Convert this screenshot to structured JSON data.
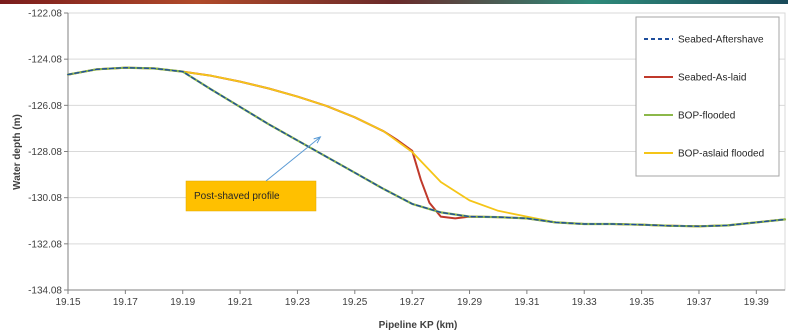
{
  "chart_data": {
    "type": "line",
    "xlabel": "Pipeline KP (km)",
    "ylabel": "Water depth (m)",
    "xlim": [
      19.15,
      19.4
    ],
    "ylim": [
      -134.08,
      -122.08
    ],
    "x_ticks": [
      "19.15",
      "19.17",
      "19.19",
      "19.21",
      "19.23",
      "19.25",
      "19.27",
      "19.29",
      "19.31",
      "19.33",
      "19.35",
      "19.37",
      "19.39"
    ],
    "y_ticks": [
      "-122.08",
      "-124.08",
      "-126.08",
      "-128.08",
      "-130.08",
      "-132.08",
      "-134.08"
    ],
    "grid": "horizontal",
    "legend_position": "top-right",
    "series": [
      {
        "name": "Seabed-Aftershave",
        "color": "#1f4e9c",
        "dash": true,
        "points": [
          [
            19.15,
            -124.75
          ],
          [
            19.16,
            -124.52
          ],
          [
            19.17,
            -124.45
          ],
          [
            19.18,
            -124.48
          ],
          [
            19.19,
            -124.62
          ],
          [
            19.2,
            -125.4
          ],
          [
            19.21,
            -126.15
          ],
          [
            19.22,
            -126.9
          ],
          [
            19.23,
            -127.6
          ],
          [
            19.24,
            -128.3
          ],
          [
            19.25,
            -129.0
          ],
          [
            19.26,
            -129.7
          ],
          [
            19.27,
            -130.35
          ],
          [
            19.28,
            -130.72
          ],
          [
            19.29,
            -130.9
          ],
          [
            19.3,
            -130.92
          ],
          [
            19.31,
            -130.98
          ],
          [
            19.32,
            -131.15
          ],
          [
            19.33,
            -131.22
          ],
          [
            19.34,
            -131.22
          ],
          [
            19.35,
            -131.25
          ],
          [
            19.36,
            -131.3
          ],
          [
            19.37,
            -131.32
          ],
          [
            19.38,
            -131.28
          ],
          [
            19.39,
            -131.15
          ],
          [
            19.4,
            -131.02
          ]
        ]
      },
      {
        "name": "Seabed-As-laid",
        "color": "#c0392b",
        "dash": false,
        "points": [
          [
            19.15,
            -124.75
          ],
          [
            19.16,
            -124.52
          ],
          [
            19.17,
            -124.45
          ],
          [
            19.18,
            -124.48
          ],
          [
            19.19,
            -124.62
          ],
          [
            19.2,
            -124.8
          ],
          [
            19.21,
            -125.05
          ],
          [
            19.22,
            -125.35
          ],
          [
            19.23,
            -125.7
          ],
          [
            19.24,
            -126.1
          ],
          [
            19.25,
            -126.6
          ],
          [
            19.26,
            -127.2
          ],
          [
            19.265,
            -127.6
          ],
          [
            19.27,
            -128.05
          ],
          [
            19.273,
            -129.3
          ],
          [
            19.276,
            -130.3
          ],
          [
            19.28,
            -130.9
          ],
          [
            19.285,
            -130.98
          ],
          [
            19.29,
            -130.9
          ],
          [
            19.3,
            -130.92
          ],
          [
            19.31,
            -130.98
          ],
          [
            19.32,
            -131.15
          ],
          [
            19.33,
            -131.22
          ],
          [
            19.34,
            -131.22
          ],
          [
            19.35,
            -131.25
          ],
          [
            19.36,
            -131.3
          ],
          [
            19.37,
            -131.32
          ],
          [
            19.38,
            -131.28
          ],
          [
            19.39,
            -131.15
          ],
          [
            19.4,
            -131.02
          ]
        ]
      },
      {
        "name": "BOP-flooded",
        "color": "#8cb84a",
        "dash": false,
        "points": [
          [
            19.15,
            -124.75
          ],
          [
            19.16,
            -124.52
          ],
          [
            19.17,
            -124.45
          ],
          [
            19.18,
            -124.48
          ],
          [
            19.19,
            -124.62
          ],
          [
            19.2,
            -125.4
          ],
          [
            19.21,
            -126.15
          ],
          [
            19.22,
            -126.9
          ],
          [
            19.23,
            -127.6
          ],
          [
            19.24,
            -128.3
          ],
          [
            19.25,
            -129.0
          ],
          [
            19.26,
            -129.7
          ],
          [
            19.27,
            -130.35
          ],
          [
            19.28,
            -130.72
          ],
          [
            19.29,
            -130.9
          ],
          [
            19.3,
            -130.92
          ],
          [
            19.31,
            -130.98
          ],
          [
            19.32,
            -131.15
          ],
          [
            19.33,
            -131.22
          ],
          [
            19.34,
            -131.22
          ],
          [
            19.35,
            -131.25
          ],
          [
            19.36,
            -131.3
          ],
          [
            19.37,
            -131.32
          ],
          [
            19.38,
            -131.28
          ],
          [
            19.39,
            -131.15
          ],
          [
            19.4,
            -131.02
          ]
        ]
      },
      {
        "name": "BOP-aslaid flooded",
        "color": "#f5c518",
        "dash": false,
        "points": [
          [
            19.15,
            -124.75
          ],
          [
            19.16,
            -124.52
          ],
          [
            19.17,
            -124.45
          ],
          [
            19.18,
            -124.48
          ],
          [
            19.19,
            -124.62
          ],
          [
            19.2,
            -124.8
          ],
          [
            19.21,
            -125.05
          ],
          [
            19.22,
            -125.35
          ],
          [
            19.23,
            -125.7
          ],
          [
            19.24,
            -126.1
          ],
          [
            19.25,
            -126.6
          ],
          [
            19.26,
            -127.2
          ],
          [
            19.27,
            -128.1
          ],
          [
            19.275,
            -128.75
          ],
          [
            19.28,
            -129.4
          ],
          [
            19.29,
            -130.2
          ],
          [
            19.3,
            -130.65
          ],
          [
            19.31,
            -130.9
          ],
          [
            19.32,
            -131.15
          ],
          [
            19.33,
            -131.22
          ],
          [
            19.34,
            -131.22
          ],
          [
            19.35,
            -131.25
          ],
          [
            19.36,
            -131.3
          ],
          [
            19.37,
            -131.32
          ],
          [
            19.38,
            -131.28
          ],
          [
            19.39,
            -131.15
          ],
          [
            19.4,
            -131.02
          ]
        ]
      }
    ],
    "annotations": [
      {
        "text": "Post-shaved profile",
        "arrow_to": [
          19.238,
          -127.45
        ],
        "box_color": "#ffc000"
      }
    ]
  }
}
